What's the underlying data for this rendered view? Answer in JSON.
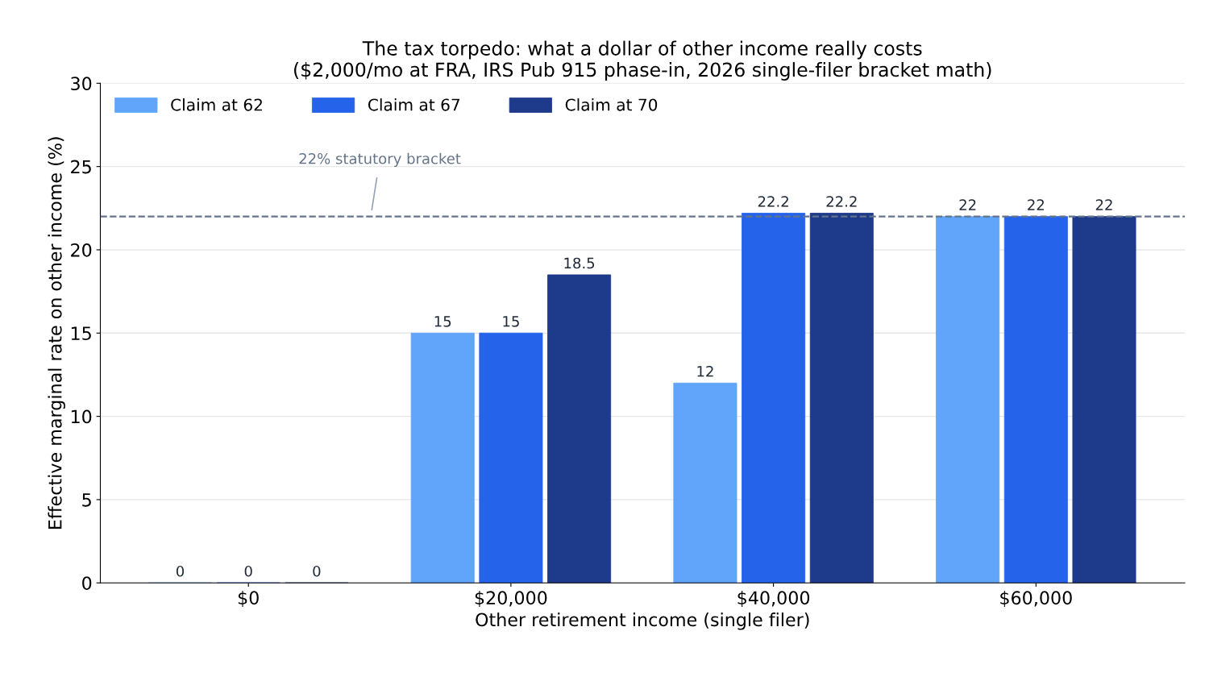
{
  "chart_data": {
    "type": "bar",
    "title": "The tax torpedo: what a dollar of other income really costs\n($2,000/mo at FRA, IRS Pub 915 phase-in, 2026 single-filer bracket math)",
    "xlabel": "Other retirement income (single filer)",
    "ylabel": "Effective marginal rate on other income (%)",
    "categories": [
      "$0",
      "$20,000",
      "$40,000",
      "$60,000"
    ],
    "series": [
      {
        "name": "Claim at 62",
        "color": "#60a5fa",
        "values": [
          0,
          15,
          12,
          22
        ]
      },
      {
        "name": "Claim at 67",
        "color": "#2563eb",
        "values": [
          0,
          15,
          22.2,
          22
        ]
      },
      {
        "name": "Claim at 70",
        "color": "#1e3a8a",
        "values": [
          0,
          18.5,
          22.2,
          22
        ]
      }
    ],
    "ylim": [
      0,
      30
    ],
    "yticks": [
      0,
      5,
      10,
      15,
      20,
      25,
      30
    ],
    "ref_lines": [
      {
        "axis": "y",
        "value": 22,
        "label": "22% statutory bracket",
        "color": "#64748b",
        "line_style": "dashed"
      }
    ],
    "data_labels": true,
    "grid": "y",
    "legend": "top left"
  }
}
